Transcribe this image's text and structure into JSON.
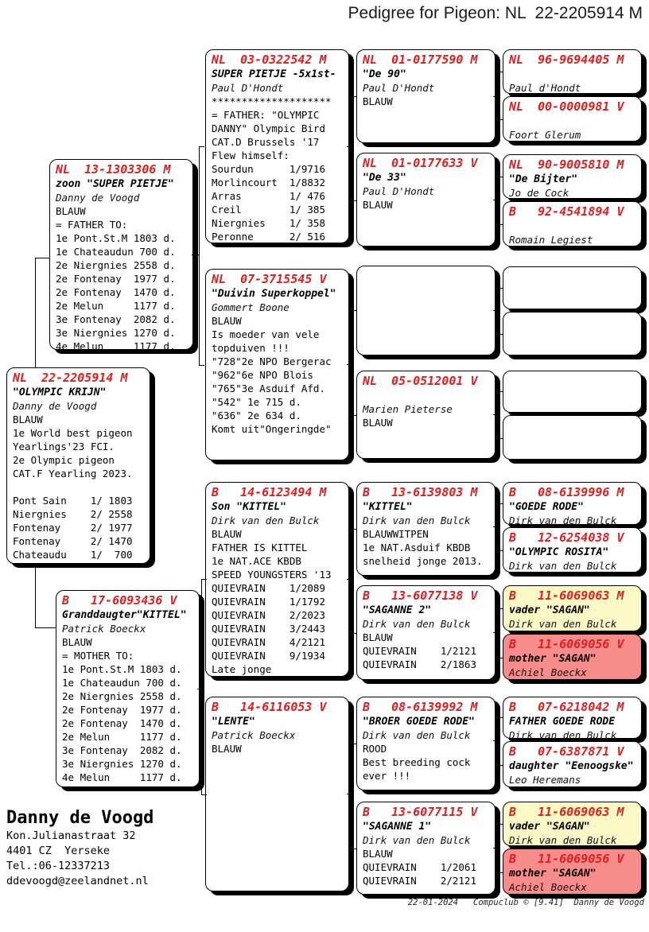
{
  "title": "Pedigree for Pigeon: NL  22-2205914 M",
  "colors": {
    "ring_red": "#dc1f1f",
    "box_yellow": "#faf8c4",
    "box_pink": "#f78c8c"
  },
  "owner": {
    "name": "Danny de Voogd",
    "address_line1": "Kon.Julianastraat 32",
    "address_line2": "4401 CZ  Yerseke",
    "phone": "Tel.:06-12337213",
    "email": "ddevoogd@zeelandnet.nl"
  },
  "footer": {
    "date": "22-01-2024",
    "software": "Compuclub © [9.41]",
    "owner": "Danny de Voogd"
  },
  "boxes": [
    {
      "id": "father",
      "ring": "NL  13-1303306 M",
      "name": "zoon \"SUPER PIETJE\"",
      "fancier": "Danny de Voogd",
      "lines": [
        "BLAUW",
        "= FATHER TO:",
        "1e Pont.St.M 1803 d.",
        "1e Chateaudun 700 d.",
        "2e Niergnies 2558 d.",
        "2e Fontenay  1977 d.",
        "2e Fontenay  1470 d.",
        "2e Melun     1177 d.",
        "3e Fontenay  2082 d.",
        "3e Niergnies 1270 d.",
        "4e Melun     1177 d."
      ]
    },
    {
      "id": "subject",
      "ring": "NL  22-2205914 M",
      "name": "\"OLYMPIC KRIJN\"",
      "fancier": "Danny de Voogd",
      "lines": [
        "BLAUW",
        "1e World best pigeon",
        "Yearlings'23 FCI.",
        "2e Olympic pigeon",
        "CAT.F Yearling 2023.",
        "",
        "Pont Sain    1/ 1803",
        "Niergnies    2/ 2558",
        "Fontenay     2/ 1977",
        "Fontenay     2/ 1470",
        "Chateaudu    1/  700"
      ]
    },
    {
      "id": "mother",
      "ring": "B   17-6093436 V",
      "name": "Granddaugter\"KITTEL\"",
      "fancier": "Patrick Boeckx",
      "lines": [
        "BLAUW",
        "= MOTHER TO:",
        "1e Pont.St.M 1803 d.",
        "1e Chateaudun 700 d.",
        "2e Niergnies 2558 d.",
        "2e Fontenay  1977 d.",
        "2e Fontenay  1470 d.",
        "2e Melun     1177 d.",
        "3e Fontenay  2082 d.",
        "3e Niergnies 1270 d.",
        "4e Melun     1177 d."
      ]
    },
    {
      "id": "g1",
      "ring": "NL  03-0322542 M",
      "name": "SUPER PIETJE -5x1st-",
      "fancier": "Paul D'Hondt",
      "lines": [
        "********************",
        "= FATHER: \"OLYMPIC",
        "DANNY\" Olympic Bird",
        "CAT.D Brussels '17",
        "Flew himself:",
        "Sourdun      1/9716",
        "Morlincourt  1/8832",
        "Arras        1/ 476",
        "Creil        1/ 385",
        "Niergnies    1/ 358",
        "Peronne      2/ 516"
      ]
    },
    {
      "id": "g2",
      "ring": "NL  07-3715545 V",
      "name": "\"Duivin Superkoppel\"",
      "fancier": "Gommert Boone",
      "lines": [
        "BLAUW",
        "Is moeder van vele",
        "topduiven !!!",
        "\"728\"2e NPO Bergerac",
        "\"962\"6e NPO Blois",
        "\"765\"3e Asduif Afd.",
        "\"542\" 1e 715 d.",
        "\"636\" 2e 634 d.",
        "Komt uit\"Ongeringde\""
      ]
    },
    {
      "id": "g3",
      "ring": "B   14-6123494 M",
      "name": "Son \"KITTEL\"",
      "fancier": "Dirk van den Bulck",
      "lines": [
        "BLAUW",
        "FATHER IS KITTEL",
        "1e NAT.ACE KBDB",
        "SPEED YOUNGSTERS '13",
        "QUIEVRAIN    1/2089",
        "QUIEVRAIN    1/1792",
        "QUIEVRAIN    2/2023",
        "QUIEVRAIN    3/2443",
        "QUIEVRAIN    4/2121",
        "QUIEVRAIN    9/1934",
        "Late jonge"
      ]
    },
    {
      "id": "g4",
      "ring": "B   14-6116053 V",
      "name": "\"LENTE\"",
      "fancier": "Patrick Boeckx",
      "lines": [
        "BLAUW"
      ]
    },
    {
      "id": "gg1",
      "ring": "NL  01-0177590 M",
      "name": "\"De 90\"",
      "fancier": "Paul D'Hondt",
      "lines": [
        "BLAUW"
      ]
    },
    {
      "id": "gg2",
      "ring": "NL  01-0177633 V",
      "name": "\"De 33\"",
      "fancier": "Paul D'Hondt",
      "lines": [
        "BLAUW"
      ]
    },
    {
      "id": "gg3",
      "empty": true
    },
    {
      "id": "gg4",
      "ring": "NL  05-0512001 V",
      "name": "",
      "fancier": "Marien Pieterse",
      "lines": [
        "BLAUW"
      ]
    },
    {
      "id": "gg5",
      "ring": "B   13-6139803 M",
      "name": "\"KITTEL\"",
      "fancier": "Dirk van den Bulck",
      "lines": [
        "BLAUWWITPEN",
        "1e NAT.Asduif KBDB",
        "snelheid jonge 2013."
      ]
    },
    {
      "id": "gg6",
      "ring": "B   13-6077138 V",
      "name": "\"SAGANNE 2\"",
      "fancier": "Dirk van den Bulck",
      "lines": [
        "BLAUW",
        "QUIEVRAIN    1/2121",
        "QUIEVRAIN    2/1863"
      ]
    },
    {
      "id": "gg7",
      "ring": "B   08-6139992 M",
      "name": "\"BROER GOEDE RODE\"",
      "fancier": "Dirk van den Bulck",
      "lines": [
        "ROOD",
        "Best breeding cock",
        "ever !!!"
      ]
    },
    {
      "id": "gg8",
      "ring": "B   13-6077115 V",
      "name": "\"SAGANNE 1\"",
      "fancier": "Dirk van den Bulck",
      "lines": [
        "BLAUW",
        "QUIEVRAIN    1/2061",
        "QUIEVRAIN    2/2121"
      ]
    },
    {
      "id": "ggg1",
      "ring": "NL  96-9694405 M",
      "name": "",
      "fancier": "Paul d'Hondt",
      "lines": []
    },
    {
      "id": "ggg2",
      "ring": "NL  00-0000981 V",
      "name": "",
      "fancier": "Foort Glerum",
      "lines": []
    },
    {
      "id": "ggg3",
      "ring": "NL  90-9005810 M",
      "name": "\"De Bijter\"",
      "fancier": "Jo de Cock",
      "lines": []
    },
    {
      "id": "ggg4",
      "ring": "B   92-4541894 V",
      "name": "",
      "fancier": "Romain Legiest",
      "lines": []
    },
    {
      "id": "ggg5",
      "empty": true
    },
    {
      "id": "ggg6",
      "empty": true
    },
    {
      "id": "ggg7",
      "empty": true
    },
    {
      "id": "ggg8",
      "empty": true
    },
    {
      "id": "ggg9",
      "ring": "B   08-6139996 M",
      "name": "\"GOEDE RODE\"",
      "fancier": "Dirk van den Bulck",
      "lines": []
    },
    {
      "id": "ggg10",
      "ring": "B   12-6254038 V",
      "name": "\"OLYMPIC ROSITA\"",
      "fancier": "Dirk van den Bulck",
      "lines": []
    },
    {
      "id": "ggg11",
      "ring": "B   11-6069063 M",
      "name": "vader \"SAGAN\"",
      "fancier": "Dirk van den Bulck",
      "highlight": "yellow",
      "lines": []
    },
    {
      "id": "ggg12",
      "ring": "B   11-6069056 V",
      "name": "mother \"SAGAN\"",
      "fancier": "Achiel Boeckx",
      "highlight": "pink",
      "lines": []
    },
    {
      "id": "ggg13",
      "ring": "B   07-6218042 M",
      "name": "FATHER GOEDE RODE",
      "fancier": "Dirk van den Bulck",
      "lines": []
    },
    {
      "id": "ggg14",
      "ring": "B   07-6387871 V",
      "name": "daughter \"Eenoogske\"",
      "fancier": "Leo Heremans",
      "lines": []
    },
    {
      "id": "ggg15",
      "ring": "B   11-6069063 M",
      "name": "vader \"SAGAN\"",
      "fancier": "Dirk van den Bulck",
      "highlight": "yellow",
      "lines": []
    },
    {
      "id": "ggg16",
      "ring": "B   11-6069056 V",
      "name": "mother \"SAGAN\"",
      "fancier": "Achiel Boeckx",
      "highlight": "pink",
      "lines": []
    }
  ]
}
